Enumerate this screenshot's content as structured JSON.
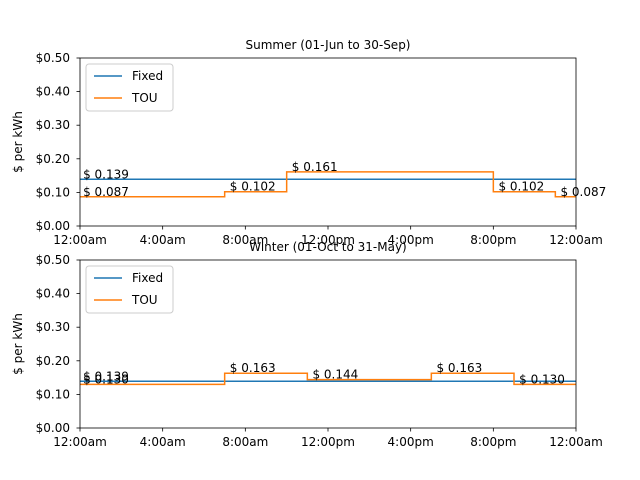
{
  "chart_data": [
    {
      "type": "line",
      "title": "Summer (01-Jun to 30-Sep)",
      "xlabel": "",
      "ylabel": "$ per kWh",
      "xlim": [
        0,
        24
      ],
      "ylim": [
        0,
        0.5
      ],
      "x_ticks": [
        0,
        4,
        8,
        12,
        16,
        20,
        24
      ],
      "x_tick_labels": [
        "12:00am",
        "4:00am",
        "8:00am",
        "12:00pm",
        "4:00pm",
        "8:00pm",
        "12:00am"
      ],
      "y_ticks": [
        0,
        0.1,
        0.2,
        0.3,
        0.4,
        0.5
      ],
      "y_tick_labels": [
        "$0.00",
        "$0.10",
        "$0.20",
        "$0.30",
        "$0.40",
        "$0.50"
      ],
      "legend_position": "top-left",
      "grid": false,
      "series": [
        {
          "name": "Fixed",
          "color": "#1f77b4",
          "shape": "step",
          "x": [
            0,
            24
          ],
          "values": [
            0.139,
            0.139
          ]
        },
        {
          "name": "TOU",
          "color": "#ff7f0e",
          "shape": "step",
          "x": [
            0,
            7,
            10,
            20,
            23,
            24
          ],
          "values": [
            0.087,
            0.102,
            0.161,
            0.102,
            0.087,
            0.087
          ]
        }
      ],
      "annotations": [
        {
          "text": "$ 0.139",
          "x": 0.1,
          "y": 0.139
        },
        {
          "text": "$ 0.087",
          "x": 0.1,
          "y": 0.087
        },
        {
          "text": "$ 0.102",
          "x": 7.2,
          "y": 0.102
        },
        {
          "text": "$ 0.161",
          "x": 10.2,
          "y": 0.161
        },
        {
          "text": "$ 0.102",
          "x": 20.2,
          "y": 0.102
        },
        {
          "text": "$ 0.087",
          "x": 23.2,
          "y": 0.087
        }
      ]
    },
    {
      "type": "line",
      "title": "Winter (01-Oct to 31-May)",
      "xlabel": "",
      "ylabel": "$ per kWh",
      "xlim": [
        0,
        24
      ],
      "ylim": [
        0,
        0.5
      ],
      "x_ticks": [
        0,
        4,
        8,
        12,
        16,
        20,
        24
      ],
      "x_tick_labels": [
        "12:00am",
        "4:00am",
        "8:00am",
        "12:00pm",
        "4:00pm",
        "8:00pm",
        "12:00am"
      ],
      "y_ticks": [
        0,
        0.1,
        0.2,
        0.3,
        0.4,
        0.5
      ],
      "y_tick_labels": [
        "$0.00",
        "$0.10",
        "$0.20",
        "$0.30",
        "$0.40",
        "$0.50"
      ],
      "legend_position": "top-left",
      "grid": false,
      "series": [
        {
          "name": "Fixed",
          "color": "#1f77b4",
          "shape": "step",
          "x": [
            0,
            24
          ],
          "values": [
            0.139,
            0.139
          ]
        },
        {
          "name": "TOU",
          "color": "#ff7f0e",
          "shape": "step",
          "x": [
            0,
            7,
            11,
            17,
            21,
            24
          ],
          "values": [
            0.13,
            0.163,
            0.144,
            0.163,
            0.13,
            0.13
          ]
        }
      ],
      "annotations": [
        {
          "text": "$ 0.139",
          "x": 0.1,
          "y": 0.139
        },
        {
          "text": "$ 0.130",
          "x": 0.1,
          "y": 0.13
        },
        {
          "text": "$ 0.163",
          "x": 7.2,
          "y": 0.163
        },
        {
          "text": "$ 0.144",
          "x": 11.2,
          "y": 0.144
        },
        {
          "text": "$ 0.163",
          "x": 17.2,
          "y": 0.163
        },
        {
          "text": "$ 0.130",
          "x": 21.2,
          "y": 0.13
        }
      ]
    }
  ]
}
